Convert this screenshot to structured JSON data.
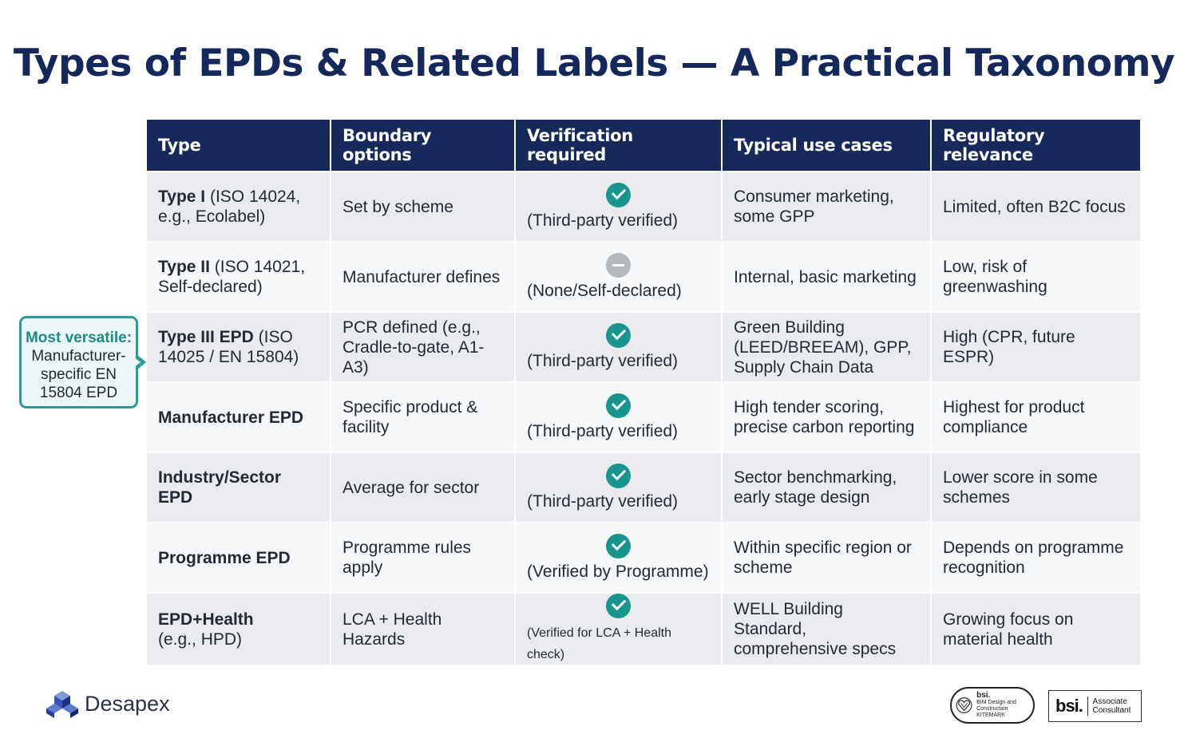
{
  "title": "Types of EPDs & Related Labels — A Practical Taxonomy",
  "table": {
    "headers": [
      "Type",
      "Boundary options",
      "Verification required",
      "Typical use cases",
      "Regulatory relevance"
    ],
    "rows": [
      {
        "type_bold": "Type I",
        "type_rest": " (ISO 14024, e.g., Ecolabel)",
        "boundary": "Set by scheme",
        "verification_icon": "check-circle-icon",
        "verification": "(Third-party verified)",
        "use_cases": "Consumer marketing, some GPP",
        "regulatory": "Limited, often B2C focus"
      },
      {
        "type_bold": "Type II",
        "type_rest": " (ISO 14021, Self-declared)",
        "boundary": "Manufacturer defines",
        "verification_icon": "minus-circle-icon",
        "verification": "(None/Self-declared)",
        "use_cases": "Internal, basic marketing",
        "regulatory": "Low, risk of greenwashing"
      },
      {
        "type_bold": "Type III EPD",
        "type_rest": " (ISO 14025 / EN 15804)",
        "boundary": "PCR defined (e.g., Cradle-to-gate, A1-A3)",
        "verification_icon": "check-circle-icon",
        "verification": "(Third-party verified)",
        "use_cases": "Green Building (LEED/BREEAM), GPP, Supply Chain Data",
        "regulatory": "High (CPR, future ESPR)"
      },
      {
        "type_bold": "Manufacturer EPD",
        "type_rest": "",
        "boundary": "Specific product & facility",
        "verification_icon": "check-circle-icon",
        "verification": "(Third-party verified)",
        "use_cases": "High tender scoring, precise carbon reporting",
        "regulatory": "Highest for product compliance"
      },
      {
        "type_bold": "Industry/Sector EPD",
        "type_rest": "",
        "boundary": "Average for sector",
        "verification_icon": "check-circle-icon",
        "verification": "(Third-party verified)",
        "use_cases": "Sector benchmarking, early stage design",
        "regulatory": "Lower score in some schemes"
      },
      {
        "type_bold": "Programme EPD",
        "type_rest": "",
        "boundary": "Programme rules apply",
        "verification_icon": "check-circle-icon",
        "verification": "(Verified by Programme)",
        "use_cases": "Within specific region or scheme",
        "regulatory": "Depends on programme recognition"
      },
      {
        "type_bold": "EPD+Health",
        "type_rest": "(e.g., HPD)",
        "boundary": "LCA + Health Hazards",
        "verification_icon": "check-circle-icon",
        "verification": "(Verified for LCA + Health check)",
        "use_cases": "WELL Building Standard, comprehensive specs",
        "regulatory": "Growing focus on material health"
      }
    ]
  },
  "callout": {
    "highlight": "Most versatile:",
    "text": "Manufacturer-specific EN 15804 EPD"
  },
  "footer": {
    "brand_name": "Desapex",
    "kitemark_bsi": "bsi.",
    "kitemark_text": "BIM Design and Construction KITEMARK",
    "assoc_bsi": "bsi.",
    "assoc_text": "Associate Consultant"
  },
  "colors": {
    "title": "#14285c",
    "header_bg": "#16295a",
    "check": "#17958e",
    "callout_border": "#2a9c98"
  }
}
